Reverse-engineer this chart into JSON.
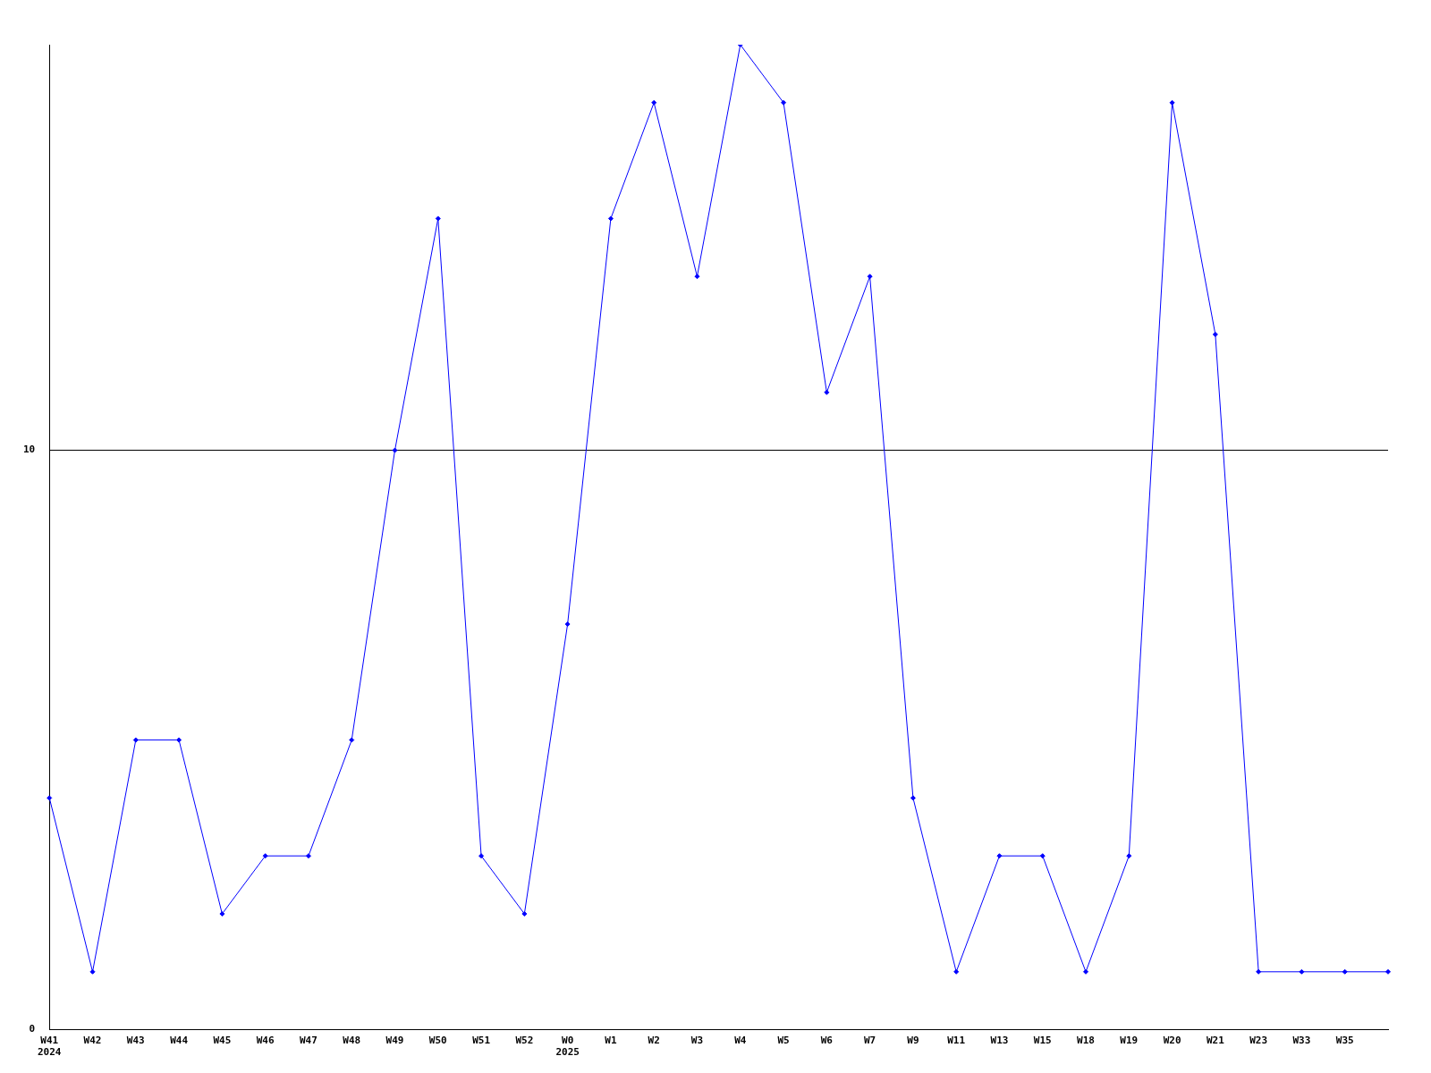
{
  "chart_data": {
    "type": "line",
    "categories": [
      "W41\n2024",
      "W42",
      "W43",
      "W44",
      "W45",
      "W46",
      "W47",
      "W48",
      "W49",
      "W50",
      "W51",
      "W52",
      "W0\n2025",
      "W1",
      "W2",
      "W3",
      "W4",
      "W5",
      "W6",
      "W7",
      "W9",
      "W11",
      "W13",
      "W15",
      "W18",
      "W19",
      "W20",
      "W21",
      "W23",
      "W33",
      "W35",
      null
    ],
    "series": [
      {
        "color": "#0000ff",
        "values": [
          4,
          1,
          5,
          5,
          2,
          3,
          3,
          5,
          10,
          14,
          3,
          2,
          7,
          14,
          16,
          13,
          17,
          16,
          11,
          13,
          4,
          1,
          3,
          3,
          1,
          3,
          16,
          12,
          1,
          1,
          1,
          1
        ]
      }
    ],
    "ylim": [
      0,
      17
    ],
    "yticks": [
      0,
      10
    ],
    "grid": "y",
    "legend": false,
    "marker": "diamond",
    "line_style": "solid"
  }
}
